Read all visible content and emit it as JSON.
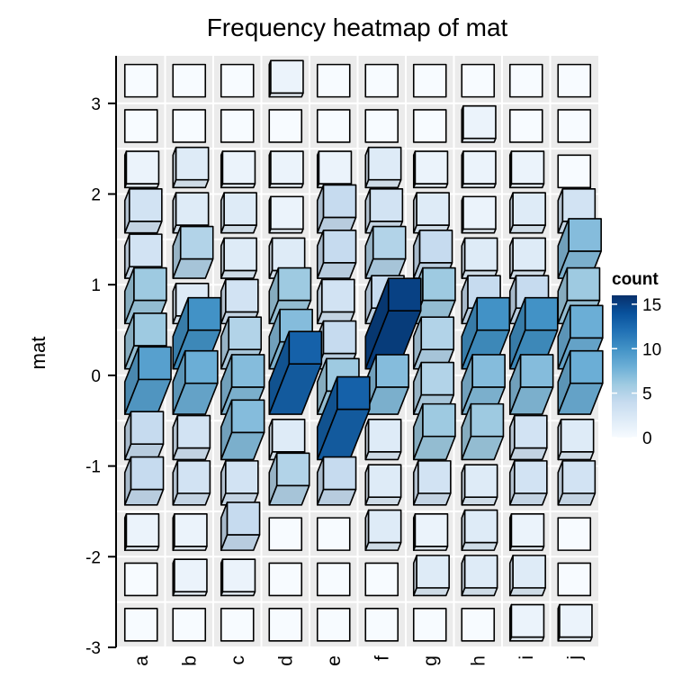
{
  "chart_data": {
    "type": "heatmap",
    "title": "Frequency heatmap of mat",
    "xlabel": "",
    "ylabel": "mat",
    "x_categories": [
      "a",
      "b",
      "c",
      "d",
      "e",
      "f",
      "g",
      "h",
      "i",
      "j"
    ],
    "y_bin_centers": [
      3.25,
      2.75,
      2.25,
      1.75,
      1.25,
      0.75,
      0.25,
      -0.25,
      -0.75,
      -1.25,
      -1.75,
      -2.25,
      -2.75
    ],
    "y_ticks": [
      "3",
      "2",
      "1",
      "0",
      "-1",
      "-2",
      "-3"
    ],
    "y_tick_values": [
      3,
      2,
      1,
      0,
      -1,
      -2,
      -3
    ],
    "ylim": [
      -3,
      3.5
    ],
    "counts": [
      [
        0,
        0,
        0,
        1,
        0,
        0,
        0,
        0,
        0,
        0
      ],
      [
        0,
        0,
        0,
        0,
        0,
        0,
        0,
        1,
        0,
        0
      ],
      [
        1,
        2,
        1,
        1,
        1,
        2,
        1,
        1,
        1,
        0
      ],
      [
        3,
        2,
        2,
        1,
        4,
        3,
        2,
        1,
        2,
        3
      ],
      [
        3,
        5,
        2,
        2,
        4,
        5,
        4,
        2,
        2,
        7
      ],
      [
        6,
        2,
        3,
        6,
        3,
        4,
        6,
        4,
        4,
        6
      ],
      [
        6,
        10,
        5,
        7,
        4,
        15,
        5,
        10,
        10,
        8
      ],
      [
        9,
        8,
        7,
        13,
        6,
        7,
        5,
        7,
        7,
        8
      ],
      [
        4,
        3,
        7,
        2,
        13,
        2,
        6,
        6,
        3,
        2
      ],
      [
        4,
        3,
        3,
        5,
        4,
        2,
        3,
        2,
        3,
        3
      ],
      [
        1,
        1,
        4,
        0,
        0,
        2,
        1,
        2,
        1,
        0
      ],
      [
        0,
        1,
        1,
        0,
        0,
        0,
        2,
        2,
        2,
        0
      ],
      [
        0,
        0,
        0,
        0,
        0,
        0,
        0,
        0,
        1,
        1
      ]
    ],
    "legend": {
      "title": "count",
      "ticks": [
        "0",
        "5",
        "10",
        "15"
      ],
      "tick_values": [
        0,
        5,
        10,
        15
      ],
      "range": [
        0,
        16
      ],
      "placement": "right",
      "colors": [
        "#f7fbff",
        "#deebf7",
        "#c6dbef",
        "#9ecae1",
        "#6baed6",
        "#4292c6",
        "#2171b5",
        "#08519c",
        "#08306b"
      ]
    },
    "grid": true,
    "panel_background": "#ebebeb"
  }
}
